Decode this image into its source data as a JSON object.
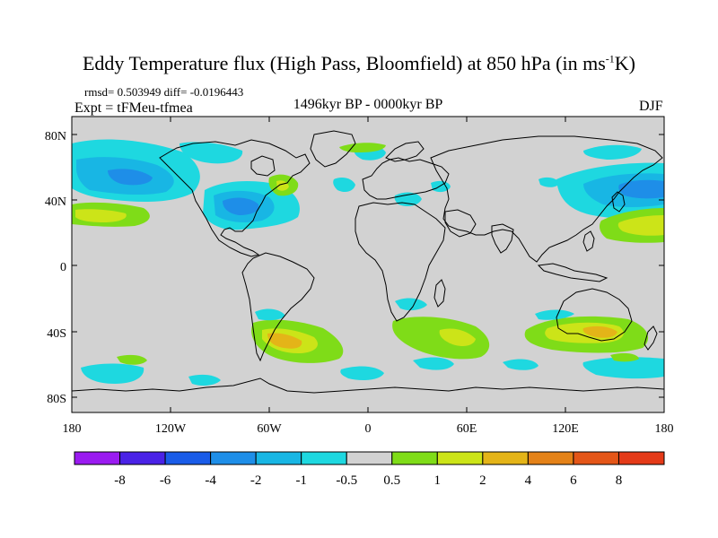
{
  "title": {
    "main": "Eddy Temperature flux (High Pass, Bloomfield) at 850 hPa (in ms",
    "sup": "-1",
    "tail": "K)"
  },
  "stats": "rmsd= 0.503949 diff= -0.0196443",
  "experiment": "Expt = tFMeu-tfmea",
  "period": "1496kyr BP - 0000kyr BP",
  "season": "DJF",
  "lat_labels": [
    "80N",
    "40N",
    "0",
    "40S",
    "80S"
  ],
  "lon_labels": [
    "180",
    "120W",
    "60W",
    "0",
    "60E",
    "120E",
    "180"
  ],
  "colorbar": {
    "labels": [
      "-8",
      "-6",
      "-4",
      "-2",
      "-1",
      "-0.5",
      "0.5",
      "1",
      "2",
      "4",
      "6",
      "8"
    ],
    "colors": [
      "#9a1bf0",
      "#4a22e6",
      "#1a5ce8",
      "#1e8ee8",
      "#18b6e4",
      "#1ed8e0",
      "#d2d2d2",
      "#7fdc18",
      "#cce418",
      "#e4b418",
      "#e48218",
      "#e45618",
      "#e43a18"
    ]
  },
  "map_colors": {
    "background": "#d2d2d2",
    "coast": "#000000"
  },
  "icons": [
    "coastline-map"
  ]
}
